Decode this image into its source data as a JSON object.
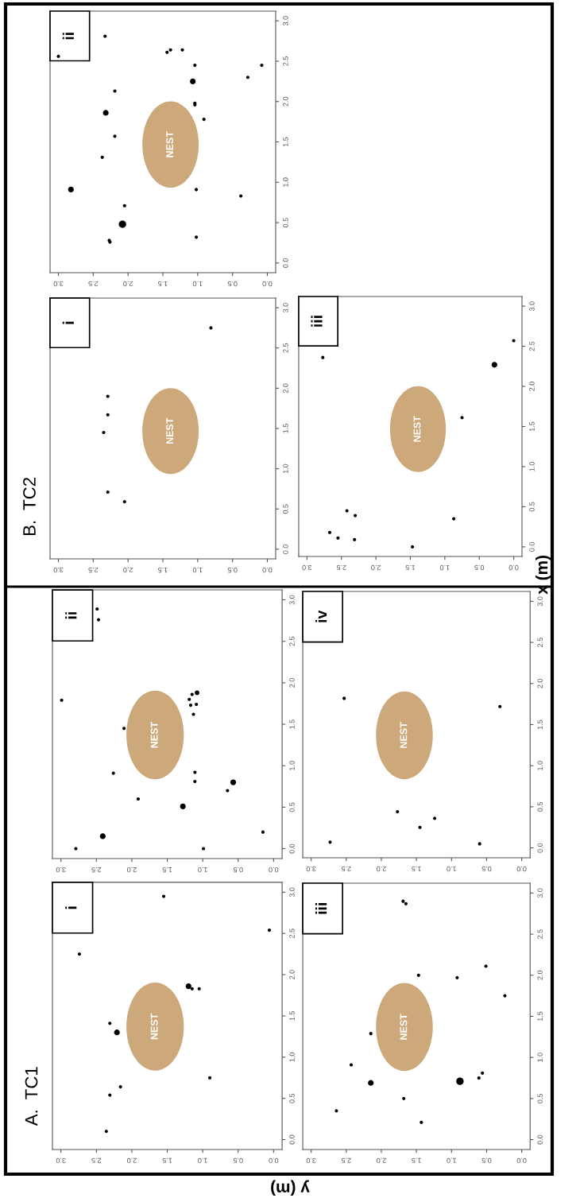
{
  "chart_data": [
    {
      "type": "bubble",
      "title": "i",
      "xlabel": "y (m)",
      "annotations": [
        "NEST",
        "A.  TC1"
      ],
      "series": [
        {
          "color": "#000000",
          "values": [
            2.95,
            2.54,
            2.25,
            1.86,
            1.83,
            1.83,
            1.41,
            1.3,
            0.75,
            0.64,
            0.54,
            0.1
          ],
          "x": [
            1.55,
            0.06,
            2.74,
            1.2,
            1.15,
            1.05,
            2.31,
            2.21,
            0.9,
            2.16,
            2.31,
            2.36
          ],
          "sizes": [
            0.33,
            0.33,
            0.33,
            1,
            0.33,
            0.33,
            0.33,
            1,
            0.33,
            0.33,
            0.33,
            0.33
          ]
        }
      ],
      "xlim": [
        3.12,
        -0.12
      ],
      "ylim": [
        -0.12,
        3.12
      ],
      "xticks": [
        {
          "value": 0,
          "label": "0.0"
        },
        {
          "value": 0.5,
          "label": "0.5"
        },
        {
          "value": 1,
          "label": "1.0"
        },
        {
          "value": 1.5,
          "label": "1.5"
        },
        {
          "value": 2,
          "label": "2.0"
        },
        {
          "value": 2.5,
          "label": "2.5"
        },
        {
          "value": 3,
          "label": "3.0"
        }
      ],
      "yticks": [
        {
          "value": 0,
          "label": "0.0"
        },
        {
          "value": 0.5,
          "label": "0.5"
        },
        {
          "value": 1,
          "label": "1.0"
        },
        {
          "value": 1.5,
          "label": "1.5"
        },
        {
          "value": 2,
          "label": "2.0"
        },
        {
          "value": 2.5,
          "label": "2.5"
        },
        {
          "value": 3,
          "label": "3.0"
        }
      ],
      "marker": "circle"
    },
    {
      "type": "bubble",
      "title": "ii",
      "annotations": [
        "NEST"
      ],
      "series": [
        {
          "color": "#000000",
          "values": [
            2.89,
            2.76,
            1.79,
            1.88,
            1.86,
            1.8,
            1.73,
            1.74,
            1.62,
            1.45,
            0.91,
            0.92,
            0.81,
            0.8,
            0.7,
            0.6,
            0.51,
            0.15,
            0.0,
            0.0,
            0.2
          ],
          "x": [
            2.49,
            2.47,
            2.99,
            1.08,
            1.15,
            1.19,
            1.17,
            1.09,
            1.13,
            2.11,
            2.26,
            1.11,
            1.11,
            0.57,
            0.65,
            1.91,
            1.28,
            2.41,
            2.79,
            0.99,
            0.15
          ],
          "sizes": [
            0.33,
            0.33,
            0.33,
            0.67,
            0.33,
            0.33,
            0.33,
            0.33,
            0.33,
            0.33,
            0.33,
            0.33,
            0.33,
            1,
            0.33,
            0.33,
            1,
            1,
            0.33,
            0.33,
            0.33
          ]
        }
      ],
      "xlim": [
        3.12,
        -0.12
      ],
      "ylim": [
        -0.12,
        3.12
      ],
      "xticks": [
        {
          "value": 0,
          "label": "0.0"
        },
        {
          "value": 0.5,
          "label": "0.5"
        },
        {
          "value": 1,
          "label": "1.0"
        },
        {
          "value": 1.5,
          "label": "1.5"
        },
        {
          "value": 2,
          "label": "2.0"
        },
        {
          "value": 2.5,
          "label": "2.5"
        },
        {
          "value": 3,
          "label": "3.0"
        }
      ],
      "yticks": [
        {
          "value": 0,
          "label": "0.0"
        },
        {
          "value": 0.5,
          "label": "0.5"
        },
        {
          "value": 1,
          "label": "1.0"
        },
        {
          "value": 1.5,
          "label": "1.5"
        },
        {
          "value": 2,
          "label": "2.0"
        },
        {
          "value": 2.5,
          "label": "2.5"
        },
        {
          "value": 3,
          "label": "3.0"
        }
      ],
      "marker": "circle"
    },
    {
      "type": "bubble",
      "title": "iii",
      "annotations": [
        "NEST"
      ],
      "series": [
        {
          "color": "#000000",
          "values": [
            2.9,
            2.87,
            2.0,
            1.97,
            2.11,
            1.75,
            1.29,
            0.91,
            0.69,
            0.71,
            0.75,
            0.81,
            0.5,
            0.35,
            0.21
          ],
          "x": [
            1.69,
            1.65,
            1.47,
            0.92,
            0.51,
            0.24,
            2.15,
            2.43,
            2.15,
            0.88,
            0.61,
            0.56,
            1.68,
            2.64,
            1.43
          ],
          "sizes": [
            0.2,
            0.2,
            0.2,
            0.2,
            0.2,
            0.2,
            0.2,
            0.2,
            0.6,
            1,
            0.2,
            0.2,
            0.2,
            0.2,
            0.2
          ]
        }
      ],
      "xlim": [
        3.12,
        -0.12
      ],
      "ylim": [
        -0.12,
        3.12
      ],
      "xticks": [
        {
          "value": 0,
          "label": "0.0"
        },
        {
          "value": 0.5,
          "label": "0.5"
        },
        {
          "value": 1,
          "label": "1.0"
        },
        {
          "value": 1.5,
          "label": "1.5"
        },
        {
          "value": 2,
          "label": "2.0"
        },
        {
          "value": 2.5,
          "label": "2.5"
        },
        {
          "value": 3,
          "label": "3.0"
        }
      ],
      "yticks": [
        {
          "value": 0,
          "label": "0.0"
        },
        {
          "value": 0.5,
          "label": "0.5"
        },
        {
          "value": 1,
          "label": "1.0"
        },
        {
          "value": 1.5,
          "label": "1.5"
        },
        {
          "value": 2,
          "label": "2.0"
        },
        {
          "value": 2.5,
          "label": "2.5"
        },
        {
          "value": 3,
          "label": "3.0"
        }
      ],
      "marker": "circle"
    },
    {
      "type": "scatter",
      "title": "iv",
      "annotations": [
        "NEST"
      ],
      "series": [
        {
          "color": "#000000",
          "values": [
            1.82,
            1.72,
            0.44,
            0.36,
            0.25,
            0.07,
            0.05
          ],
          "x": [
            2.53,
            0.31,
            1.77,
            1.24,
            1.45,
            2.73,
            0.6
          ]
        }
      ],
      "xlim": [
        3.12,
        -0.12
      ],
      "ylim": [
        -0.12,
        3.12
      ],
      "xticks": [
        {
          "value": 0,
          "label": "0.0"
        },
        {
          "value": 0.5,
          "label": "0.5"
        },
        {
          "value": 1,
          "label": "1.0"
        },
        {
          "value": 1.5,
          "label": "1.5"
        },
        {
          "value": 2,
          "label": "2.0"
        },
        {
          "value": 2.5,
          "label": "2.5"
        },
        {
          "value": 3,
          "label": "3.0"
        }
      ],
      "yticks": [
        {
          "value": 0,
          "label": "0.0"
        },
        {
          "value": 0.5,
          "label": "0.5"
        },
        {
          "value": 1,
          "label": "1.0"
        },
        {
          "value": 1.5,
          "label": "1.5"
        },
        {
          "value": 2,
          "label": "2.0"
        },
        {
          "value": 2.5,
          "label": "2.5"
        },
        {
          "value": 3,
          "label": "3.0"
        }
      ],
      "marker": "circle"
    },
    {
      "type": "scatter",
      "title": "i",
      "annotations": [
        "NEST",
        "B.  TC2"
      ],
      "series": [
        {
          "color": "#000000",
          "values": [
            2.75,
            1.45,
            1.67,
            1.9,
            0.71,
            0.59
          ],
          "x": [
            0.81,
            2.35,
            2.29,
            2.29,
            2.29,
            2.05
          ]
        }
      ],
      "xlim": [
        3.12,
        -0.12
      ],
      "ylim": [
        -0.12,
        3.12
      ],
      "xticks": [
        {
          "value": 0,
          "label": "0.0"
        },
        {
          "value": 0.5,
          "label": "0.5"
        },
        {
          "value": 1,
          "label": "1.0"
        },
        {
          "value": 1.5,
          "label": "1.5"
        },
        {
          "value": 2,
          "label": "2.0"
        },
        {
          "value": 2.5,
          "label": "2.5"
        },
        {
          "value": 3,
          "label": "3.0"
        }
      ],
      "yticks": [
        {
          "value": 0,
          "label": "0.0"
        },
        {
          "value": 0.5,
          "label": "0.5"
        },
        {
          "value": 1,
          "label": "1.0"
        },
        {
          "value": 1.5,
          "label": "1.5"
        },
        {
          "value": 2,
          "label": "2.0"
        },
        {
          "value": 2.5,
          "label": "2.5"
        },
        {
          "value": 3,
          "label": "3.0"
        }
      ],
      "marker": "circle"
    },
    {
      "type": "bubble",
      "title": "ii",
      "annotations": [
        "NEST"
      ],
      "series": [
        {
          "color": "#000000",
          "values": [
            2.56,
            2.81,
            2.61,
            2.64,
            2.64,
            2.45,
            2.45,
            2.3,
            2.25,
            2.13,
            1.98,
            1.96,
            1.86,
            1.78,
            1.57,
            1.31,
            0.91,
            0.91,
            0.83,
            0.71,
            0.48,
            0.28,
            0.26,
            0.32
          ],
          "x": [
            3.0,
            2.33,
            1.44,
            1.39,
            1.22,
            1.04,
            0.08,
            0.28,
            1.07,
            2.19,
            1.04,
            1.04,
            2.32,
            0.91,
            2.19,
            2.37,
            2.82,
            1.02,
            0.38,
            2.05,
            2.08,
            2.27,
            2.26,
            1.02
          ],
          "sizes": [
            0.2,
            0.2,
            0.2,
            0.2,
            0.2,
            0.2,
            0.2,
            0.2,
            0.6,
            0.2,
            0.2,
            0.2,
            0.6,
            0.2,
            0.2,
            0.2,
            0.6,
            0.2,
            0.2,
            0.2,
            1,
            0.2,
            0.2,
            0.2
          ]
        }
      ],
      "xlim": [
        3.12,
        -0.12
      ],
      "ylim": [
        -0.12,
        3.12
      ],
      "xticks": [
        {
          "value": 0,
          "label": "0.0"
        },
        {
          "value": 0.5,
          "label": "0.5"
        },
        {
          "value": 1,
          "label": "1.0"
        },
        {
          "value": 1.5,
          "label": "1.5"
        },
        {
          "value": 2,
          "label": "2.0"
        },
        {
          "value": 2.5,
          "label": "2.5"
        },
        {
          "value": 3,
          "label": "3.0"
        }
      ],
      "yticks": [
        {
          "value": 0,
          "label": "0.0"
        },
        {
          "value": 0.5,
          "label": "0.5"
        },
        {
          "value": 1,
          "label": "1.0"
        },
        {
          "value": 1.5,
          "label": "1.5"
        },
        {
          "value": 2,
          "label": "2.0"
        },
        {
          "value": 2.5,
          "label": "2.5"
        },
        {
          "value": 3,
          "label": "3.0"
        }
      ],
      "marker": "circle"
    },
    {
      "type": "bubble",
      "title": "iii",
      "ylabel": "x (m)",
      "annotations": [
        "NEST"
      ],
      "series": [
        {
          "color": "#000000",
          "values": [
            2.36,
            2.27,
            2.57,
            1.61,
            0.45,
            0.39,
            0.18,
            0.11,
            0.09,
            0.35,
            0.0
          ],
          "x": [
            2.77,
            0.28,
            0.0,
            0.75,
            2.42,
            2.3,
            2.67,
            2.55,
            2.31,
            0.87,
            1.47
          ],
          "sizes": [
            0.33,
            1,
            0.33,
            0.33,
            0.33,
            0.33,
            0.33,
            0.33,
            0.33,
            0.33,
            0.33
          ]
        }
      ],
      "xlim": [
        3.12,
        -0.12
      ],
      "ylim": [
        -0.12,
        3.12
      ],
      "xticks": [
        {
          "value": 0,
          "label": "0.0"
        },
        {
          "value": 0.5,
          "label": "0.5"
        },
        {
          "value": 1,
          "label": "1.0"
        },
        {
          "value": 1.5,
          "label": "1.5"
        },
        {
          "value": 2,
          "label": "2.0"
        },
        {
          "value": 2.5,
          "label": "2.5"
        },
        {
          "value": 3,
          "label": "3.0"
        }
      ],
      "yticks": [
        {
          "value": 0,
          "label": "0.0"
        },
        {
          "value": 0.5,
          "label": "0.5"
        },
        {
          "value": 1,
          "label": "1.0"
        },
        {
          "value": 1.5,
          "label": "1.5"
        },
        {
          "value": 2,
          "label": "2.0"
        },
        {
          "value": 2.5,
          "label": "2.5"
        },
        {
          "value": 3,
          "label": "3.0"
        }
      ],
      "marker": "circle"
    }
  ]
}
